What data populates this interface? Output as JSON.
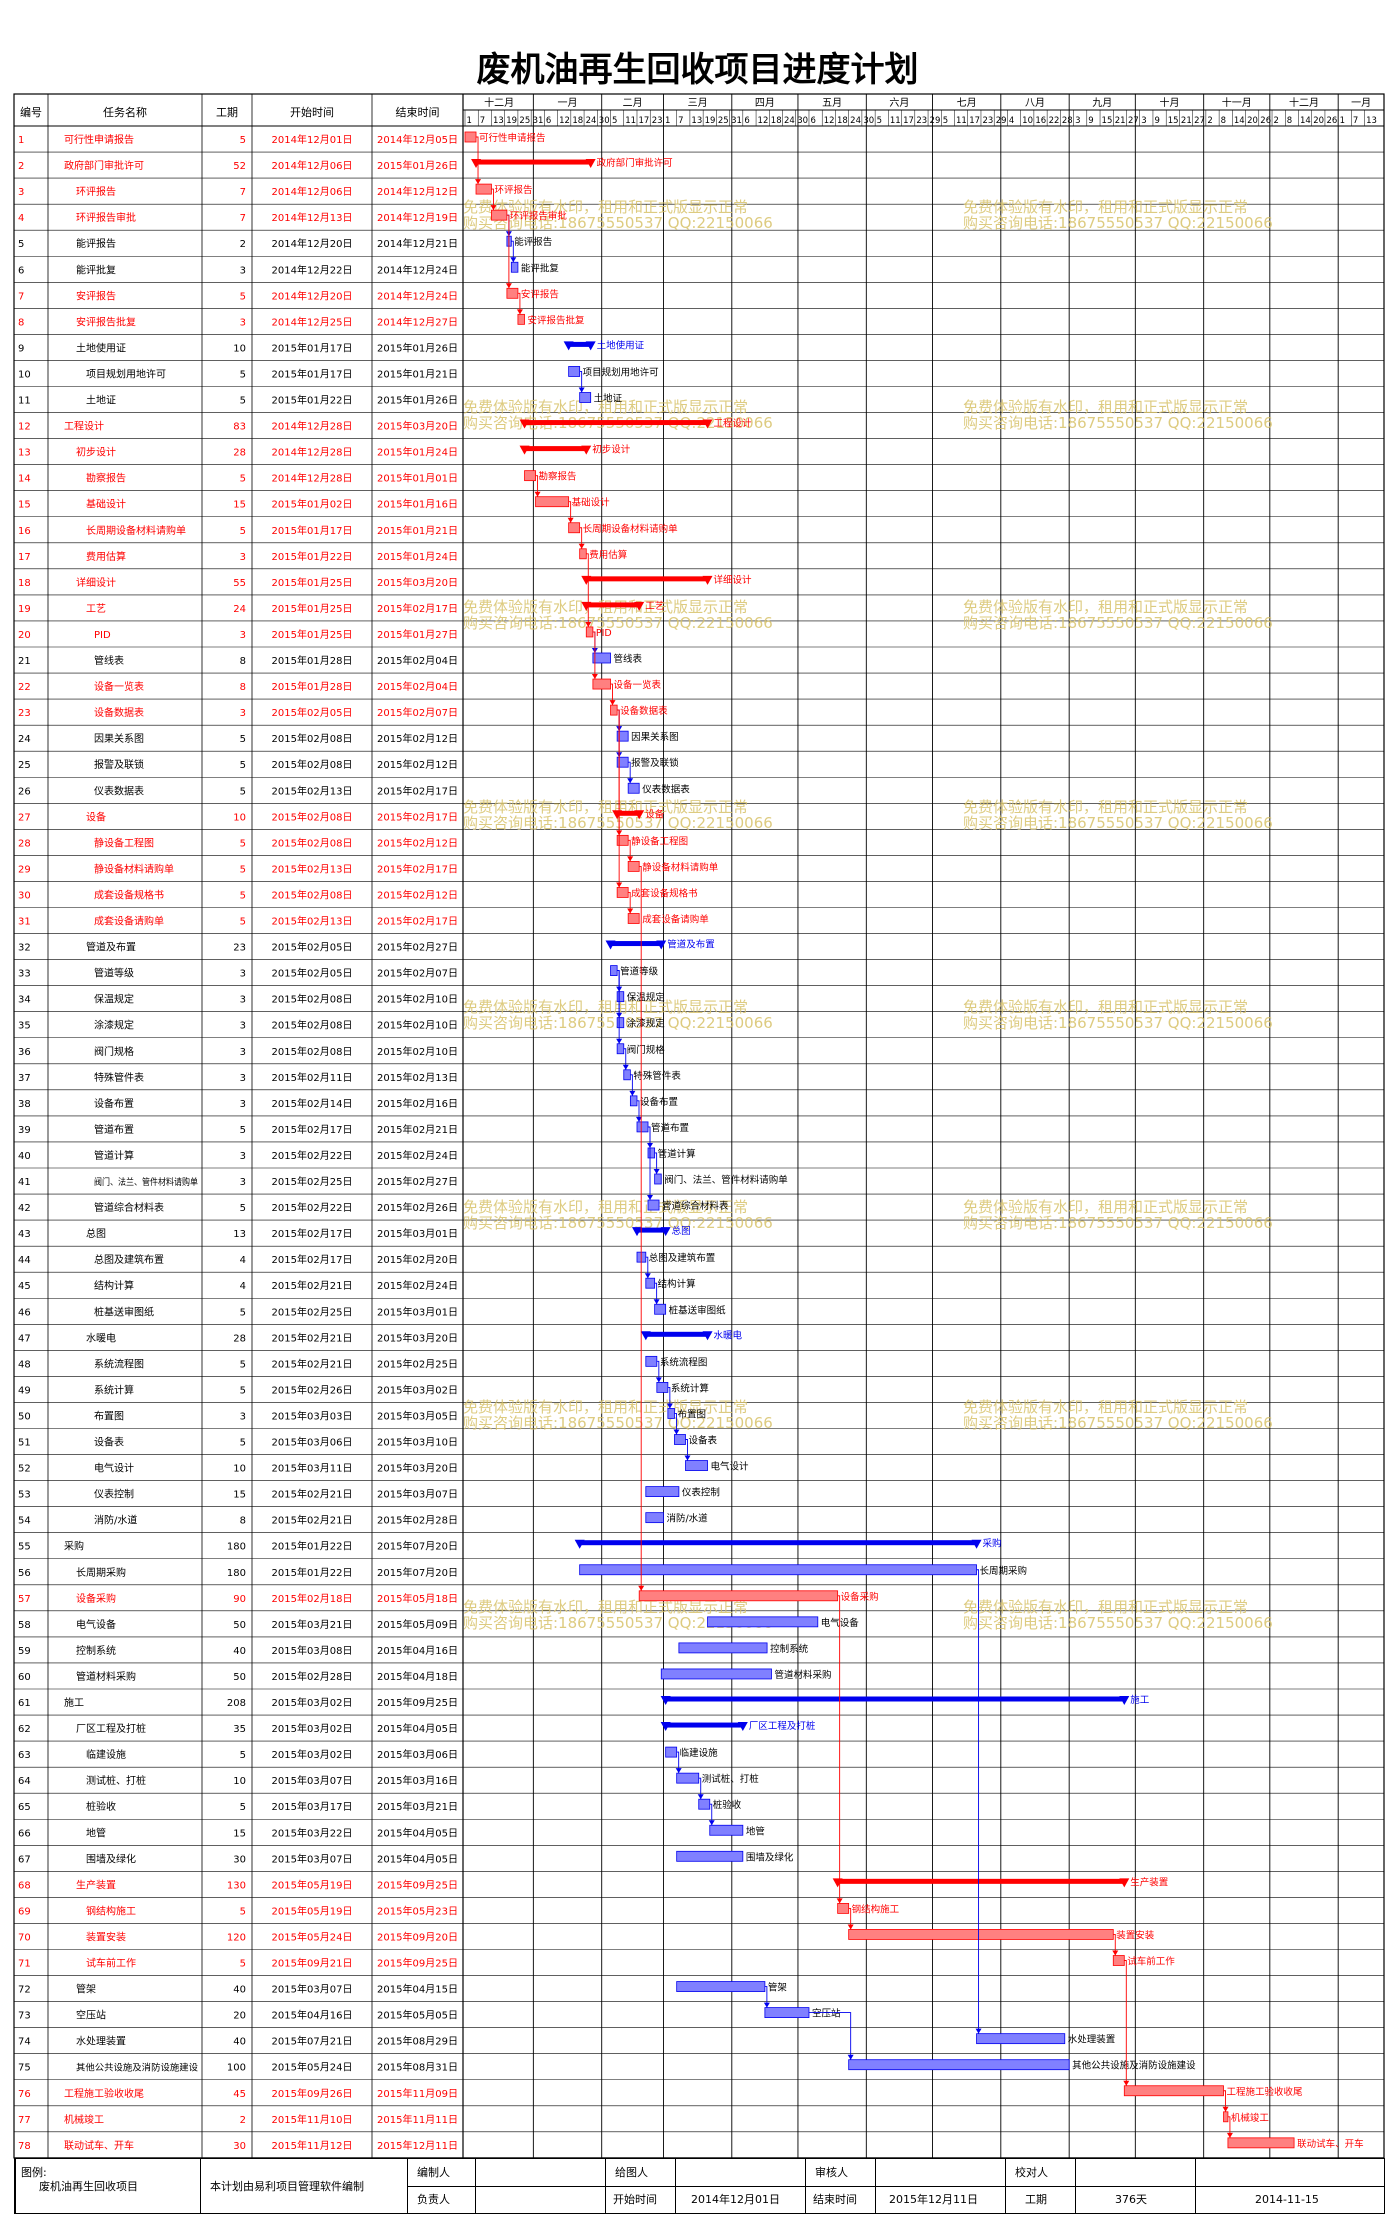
{
  "title": "废机油再生回收项目进度计划",
  "columns": [
    "编号",
    "任务名称",
    "工期",
    "开始时间",
    "结束时间"
  ],
  "month_labels": [
    "十二月",
    "一月",
    "二月",
    "三月",
    "四月",
    "五月",
    "六月",
    "七月",
    "八月",
    "九月",
    "十月",
    "十一月",
    "十二月",
    "一月"
  ],
  "day_labels": [
    "1",
    "7",
    "13",
    "19",
    "25",
    "31",
    "6",
    "12",
    "18",
    "24",
    "30",
    "5",
    "11",
    "17",
    "23",
    "1",
    "7",
    "13",
    "19",
    "25",
    "31",
    "6",
    "12",
    "18",
    "24",
    "30",
    "6",
    "12",
    "18",
    "24",
    "30",
    "5",
    "11",
    "17",
    "23",
    "29",
    "5",
    "11",
    "17",
    "23",
    "29",
    "4",
    "10",
    "16",
    "22",
    "28",
    "3",
    "9",
    "15",
    "21",
    "27",
    "3",
    "9",
    "15",
    "21",
    "27",
    "2",
    "8",
    "14",
    "20",
    "26",
    "2",
    "8",
    "14",
    "20",
    "26",
    "1",
    "7",
    "13"
  ],
  "watermark": [
    "免费体验版有水印，租用和正式版显示正常",
    "购买咨询电话:18675550537 QQ:22150066"
  ],
  "colors": {
    "red": "#ff0000",
    "blue": "#0000ee",
    "red_bar": "#ff8080",
    "blue_bar": "#8080ff",
    "watermark": "#d8c26a"
  },
  "chart_data": {
    "type": "gantt",
    "title": "废机油再生回收项目进度计划",
    "x_range": [
      "2014-12-01",
      "2016-01-18"
    ],
    "tasks": [
      {
        "id": "1",
        "name": "可行性申请报告",
        "days": "5",
        "start": "2014年12月01日",
        "end": "2014年12月05日",
        "critical": true,
        "summary": false,
        "level": 1
      },
      {
        "id": "2",
        "name": "政府部门审批许可",
        "days": "52",
        "start": "2014年12月06日",
        "end": "2015年01月26日",
        "critical": true,
        "summary": true,
        "level": 1
      },
      {
        "id": "3",
        "name": "环评报告",
        "days": "7",
        "start": "2014年12月06日",
        "end": "2014年12月12日",
        "critical": true,
        "summary": false,
        "level": 2
      },
      {
        "id": "4",
        "name": "环评报告审批",
        "days": "7",
        "start": "2014年12月13日",
        "end": "2014年12月19日",
        "critical": true,
        "summary": false,
        "level": 2
      },
      {
        "id": "5",
        "name": "能评报告",
        "days": "2",
        "start": "2014年12月20日",
        "end": "2014年12月21日",
        "critical": false,
        "summary": false,
        "level": 2
      },
      {
        "id": "6",
        "name": "能评批复",
        "days": "3",
        "start": "2014年12月22日",
        "end": "2014年12月24日",
        "critical": false,
        "summary": false,
        "level": 2
      },
      {
        "id": "7",
        "name": "安评报告",
        "days": "5",
        "start": "2014年12月20日",
        "end": "2014年12月24日",
        "critical": true,
        "summary": false,
        "level": 2
      },
      {
        "id": "8",
        "name": "安评报告批复",
        "days": "3",
        "start": "2014年12月25日",
        "end": "2014年12月27日",
        "critical": true,
        "summary": false,
        "level": 2
      },
      {
        "id": "9",
        "name": "土地使用证",
        "days": "10",
        "start": "2015年01月17日",
        "end": "2015年01月26日",
        "critical": false,
        "summary": true,
        "level": 2
      },
      {
        "id": "10",
        "name": "项目规划用地许可",
        "days": "5",
        "start": "2015年01月17日",
        "end": "2015年01月21日",
        "critical": false,
        "summary": false,
        "level": 3
      },
      {
        "id": "11",
        "name": "土地证",
        "days": "5",
        "start": "2015年01月22日",
        "end": "2015年01月26日",
        "critical": false,
        "summary": false,
        "level": 3
      },
      {
        "id": "12",
        "name": "工程设计",
        "days": "83",
        "start": "2014年12月28日",
        "end": "2015年03月20日",
        "critical": true,
        "summary": true,
        "level": 1
      },
      {
        "id": "13",
        "name": "初步设计",
        "days": "28",
        "start": "2014年12月28日",
        "end": "2015年01月24日",
        "critical": true,
        "summary": true,
        "level": 2
      },
      {
        "id": "14",
        "name": "勘察报告",
        "days": "5",
        "start": "2014年12月28日",
        "end": "2015年01月01日",
        "critical": true,
        "summary": false,
        "level": 3
      },
      {
        "id": "15",
        "name": "基础设计",
        "days": "15",
        "start": "2015年01月02日",
        "end": "2015年01月16日",
        "critical": true,
        "summary": false,
        "level": 3
      },
      {
        "id": "16",
        "name": "长周期设备材料请购单",
        "days": "5",
        "start": "2015年01月17日",
        "end": "2015年01月21日",
        "critical": true,
        "summary": false,
        "level": 3
      },
      {
        "id": "17",
        "name": "费用估算",
        "days": "3",
        "start": "2015年01月22日",
        "end": "2015年01月24日",
        "critical": true,
        "summary": false,
        "level": 3
      },
      {
        "id": "18",
        "name": "详细设计",
        "days": "55",
        "start": "2015年01月25日",
        "end": "2015年03月20日",
        "critical": true,
        "summary": true,
        "level": 2
      },
      {
        "id": "19",
        "name": "工艺",
        "days": "24",
        "start": "2015年01月25日",
        "end": "2015年02月17日",
        "critical": true,
        "summary": true,
        "level": 3
      },
      {
        "id": "20",
        "name": "PID",
        "days": "3",
        "start": "2015年01月25日",
        "end": "2015年01月27日",
        "critical": true,
        "summary": false,
        "level": 4
      },
      {
        "id": "21",
        "name": "管线表",
        "days": "8",
        "start": "2015年01月28日",
        "end": "2015年02月04日",
        "critical": false,
        "summary": false,
        "level": 4
      },
      {
        "id": "22",
        "name": "设备一览表",
        "days": "8",
        "start": "2015年01月28日",
        "end": "2015年02月04日",
        "critical": true,
        "summary": false,
        "level": 4
      },
      {
        "id": "23",
        "name": "设备数据表",
        "days": "3",
        "start": "2015年02月05日",
        "end": "2015年02月07日",
        "critical": true,
        "summary": false,
        "level": 4
      },
      {
        "id": "24",
        "name": "因果关系图",
        "days": "5",
        "start": "2015年02月08日",
        "end": "2015年02月12日",
        "critical": false,
        "summary": false,
        "level": 4
      },
      {
        "id": "25",
        "name": "报警及联锁",
        "days": "5",
        "start": "2015年02月08日",
        "end": "2015年02月12日",
        "critical": false,
        "summary": false,
        "level": 4
      },
      {
        "id": "26",
        "name": "仪表数据表",
        "days": "5",
        "start": "2015年02月13日",
        "end": "2015年02月17日",
        "critical": false,
        "summary": false,
        "level": 4
      },
      {
        "id": "27",
        "name": "设备",
        "days": "10",
        "start": "2015年02月08日",
        "end": "2015年02月17日",
        "critical": true,
        "summary": true,
        "level": 3
      },
      {
        "id": "28",
        "name": "静设备工程图",
        "days": "5",
        "start": "2015年02月08日",
        "end": "2015年02月12日",
        "critical": true,
        "summary": false,
        "level": 4
      },
      {
        "id": "29",
        "name": "静设备材料请购单",
        "days": "5",
        "start": "2015年02月13日",
        "end": "2015年02月17日",
        "critical": true,
        "summary": false,
        "level": 4
      },
      {
        "id": "30",
        "name": "成套设备规格书",
        "days": "5",
        "start": "2015年02月08日",
        "end": "2015年02月12日",
        "critical": true,
        "summary": false,
        "level": 4
      },
      {
        "id": "31",
        "name": "成套设备请购单",
        "days": "5",
        "start": "2015年02月13日",
        "end": "2015年02月17日",
        "critical": true,
        "summary": false,
        "level": 4
      },
      {
        "id": "32",
        "name": "管道及布置",
        "days": "23",
        "start": "2015年02月05日",
        "end": "2015年02月27日",
        "critical": false,
        "summary": true,
        "level": 3
      },
      {
        "id": "33",
        "name": "管道等级",
        "days": "3",
        "start": "2015年02月05日",
        "end": "2015年02月07日",
        "critical": false,
        "summary": false,
        "level": 4
      },
      {
        "id": "34",
        "name": "保温规定",
        "days": "3",
        "start": "2015年02月08日",
        "end": "2015年02月10日",
        "critical": false,
        "summary": false,
        "level": 4
      },
      {
        "id": "35",
        "name": "涂漆规定",
        "days": "3",
        "start": "2015年02月08日",
        "end": "2015年02月10日",
        "critical": false,
        "summary": false,
        "level": 4
      },
      {
        "id": "36",
        "name": "阀门规格",
        "days": "3",
        "start": "2015年02月08日",
        "end": "2015年02月10日",
        "critical": false,
        "summary": false,
        "level": 4
      },
      {
        "id": "37",
        "name": "特殊管件表",
        "days": "3",
        "start": "2015年02月11日",
        "end": "2015年02月13日",
        "critical": false,
        "summary": false,
        "level": 4
      },
      {
        "id": "38",
        "name": "设备布置",
        "days": "3",
        "start": "2015年02月14日",
        "end": "2015年02月16日",
        "critical": false,
        "summary": false,
        "level": 4
      },
      {
        "id": "39",
        "name": "管道布置",
        "days": "5",
        "start": "2015年02月17日",
        "end": "2015年02月21日",
        "critical": false,
        "summary": false,
        "level": 4
      },
      {
        "id": "40",
        "name": "管道计算",
        "days": "3",
        "start": "2015年02月22日",
        "end": "2015年02月24日",
        "critical": false,
        "summary": false,
        "level": 4
      },
      {
        "id": "41",
        "name": "阀门、法兰、管件材料请购单",
        "days": "3",
        "start": "2015年02月25日",
        "end": "2015年02月27日",
        "critical": false,
        "summary": false,
        "level": 4
      },
      {
        "id": "42",
        "name": "管道综合材料表",
        "days": "5",
        "start": "2015年02月22日",
        "end": "2015年02月26日",
        "critical": false,
        "summary": false,
        "level": 4
      },
      {
        "id": "43",
        "name": "总图",
        "days": "13",
        "start": "2015年02月17日",
        "end": "2015年03月01日",
        "critical": false,
        "summary": true,
        "level": 3
      },
      {
        "id": "44",
        "name": "总图及建筑布置",
        "days": "4",
        "start": "2015年02月17日",
        "end": "2015年02月20日",
        "critical": false,
        "summary": false,
        "level": 4
      },
      {
        "id": "45",
        "name": "结构计算",
        "days": "4",
        "start": "2015年02月21日",
        "end": "2015年02月24日",
        "critical": false,
        "summary": false,
        "level": 4
      },
      {
        "id": "46",
        "name": "桩基送审图纸",
        "days": "5",
        "start": "2015年02月25日",
        "end": "2015年03月01日",
        "critical": false,
        "summary": false,
        "level": 4
      },
      {
        "id": "47",
        "name": "水暖电",
        "days": "28",
        "start": "2015年02月21日",
        "end": "2015年03月20日",
        "critical": false,
        "summary": true,
        "level": 3
      },
      {
        "id": "48",
        "name": "系统流程图",
        "days": "5",
        "start": "2015年02月21日",
        "end": "2015年02月25日",
        "critical": false,
        "summary": false,
        "level": 4
      },
      {
        "id": "49",
        "name": "系统计算",
        "days": "5",
        "start": "2015年02月26日",
        "end": "2015年03月02日",
        "critical": false,
        "summary": false,
        "level": 4
      },
      {
        "id": "50",
        "name": "布置图",
        "days": "3",
        "start": "2015年03月03日",
        "end": "2015年03月05日",
        "critical": false,
        "summary": false,
        "level": 4
      },
      {
        "id": "51",
        "name": "设备表",
        "days": "5",
        "start": "2015年03月06日",
        "end": "2015年03月10日",
        "critical": false,
        "summary": false,
        "level": 4
      },
      {
        "id": "52",
        "name": "电气设计",
        "days": "10",
        "start": "2015年03月11日",
        "end": "2015年03月20日",
        "critical": false,
        "summary": false,
        "level": 4
      },
      {
        "id": "53",
        "name": "仪表控制",
        "days": "15",
        "start": "2015年02月21日",
        "end": "2015年03月07日",
        "critical": false,
        "summary": false,
        "level": 4
      },
      {
        "id": "54",
        "name": "消防/水道",
        "days": "8",
        "start": "2015年02月21日",
        "end": "2015年02月28日",
        "critical": false,
        "summary": false,
        "level": 4
      },
      {
        "id": "55",
        "name": "采购",
        "days": "180",
        "start": "2015年01月22日",
        "end": "2015年07月20日",
        "critical": false,
        "summary": true,
        "level": 1
      },
      {
        "id": "56",
        "name": "长周期采购",
        "days": "180",
        "start": "2015年01月22日",
        "end": "2015年07月20日",
        "critical": false,
        "summary": false,
        "level": 2
      },
      {
        "id": "57",
        "name": "设备采购",
        "days": "90",
        "start": "2015年02月18日",
        "end": "2015年05月18日",
        "critical": true,
        "summary": false,
        "level": 2
      },
      {
        "id": "58",
        "name": "电气设备",
        "days": "50",
        "start": "2015年03月21日",
        "end": "2015年05月09日",
        "critical": false,
        "summary": false,
        "level": 2
      },
      {
        "id": "59",
        "name": "控制系统",
        "days": "40",
        "start": "2015年03月08日",
        "end": "2015年04月16日",
        "critical": false,
        "summary": false,
        "level": 2
      },
      {
        "id": "60",
        "name": "管道材料采购",
        "days": "50",
        "start": "2015年02月28日",
        "end": "2015年04月18日",
        "critical": false,
        "summary": false,
        "level": 2
      },
      {
        "id": "61",
        "name": "施工",
        "days": "208",
        "start": "2015年03月02日",
        "end": "2015年09月25日",
        "critical": false,
        "summary": true,
        "level": 1
      },
      {
        "id": "62",
        "name": "厂区工程及打桩",
        "days": "35",
        "start": "2015年03月02日",
        "end": "2015年04月05日",
        "critical": false,
        "summary": true,
        "level": 2
      },
      {
        "id": "63",
        "name": "临建设施",
        "days": "5",
        "start": "2015年03月02日",
        "end": "2015年03月06日",
        "critical": false,
        "summary": false,
        "level": 3
      },
      {
        "id": "64",
        "name": "测试桩、打桩",
        "days": "10",
        "start": "2015年03月07日",
        "end": "2015年03月16日",
        "critical": false,
        "summary": false,
        "level": 3
      },
      {
        "id": "65",
        "name": "桩验收",
        "days": "5",
        "start": "2015年03月17日",
        "end": "2015年03月21日",
        "critical": false,
        "summary": false,
        "level": 3
      },
      {
        "id": "66",
        "name": "地管",
        "days": "15",
        "start": "2015年03月22日",
        "end": "2015年04月05日",
        "critical": false,
        "summary": false,
        "level": 3
      },
      {
        "id": "67",
        "name": "围墙及绿化",
        "days": "30",
        "start": "2015年03月07日",
        "end": "2015年04月05日",
        "critical": false,
        "summary": false,
        "level": 3
      },
      {
        "id": "68",
        "name": "生产装置",
        "days": "130",
        "start": "2015年05月19日",
        "end": "2015年09月25日",
        "critical": true,
        "summary": true,
        "level": 2
      },
      {
        "id": "69",
        "name": "钢结构施工",
        "days": "5",
        "start": "2015年05月19日",
        "end": "2015年05月23日",
        "critical": true,
        "summary": false,
        "level": 3
      },
      {
        "id": "70",
        "name": "装置安装",
        "days": "120",
        "start": "2015年05月24日",
        "end": "2015年09月20日",
        "critical": true,
        "summary": false,
        "level": 3
      },
      {
        "id": "71",
        "name": "试车前工作",
        "days": "5",
        "start": "2015年09月21日",
        "end": "2015年09月25日",
        "critical": true,
        "summary": false,
        "level": 3
      },
      {
        "id": "72",
        "name": "管架",
        "days": "40",
        "start": "2015年03月07日",
        "end": "2015年04月15日",
        "critical": false,
        "summary": false,
        "level": 2
      },
      {
        "id": "73",
        "name": "空压站",
        "days": "20",
        "start": "2015年04月16日",
        "end": "2015年05月05日",
        "critical": false,
        "summary": false,
        "level": 2
      },
      {
        "id": "74",
        "name": "水处理装置",
        "days": "40",
        "start": "2015年07月21日",
        "end": "2015年08月29日",
        "critical": false,
        "summary": false,
        "level": 2
      },
      {
        "id": "75",
        "name": "其他公共设施及消防设施建设",
        "days": "100",
        "start": "2015年05月24日",
        "end": "2015年08月31日",
        "critical": false,
        "summary": false,
        "level": 2
      },
      {
        "id": "76",
        "name": "工程施工验收收尾",
        "days": "45",
        "start": "2015年09月26日",
        "end": "2015年11月09日",
        "critical": true,
        "summary": false,
        "level": 1
      },
      {
        "id": "77",
        "name": "机械竣工",
        "days": "2",
        "start": "2015年11月10日",
        "end": "2015年11月11日",
        "critical": true,
        "summary": false,
        "level": 1
      },
      {
        "id": "78",
        "name": "联动试车、开车",
        "days": "30",
        "start": "2015年11月12日",
        "end": "2015年12月11日",
        "critical": true,
        "summary": false,
        "level": 1
      }
    ]
  },
  "footer": {
    "legend": "图例:",
    "project": "废机油再生回收项目",
    "software": "本计划由易利项目管理软件编制",
    "editor_label": "编制人",
    "owner_label": "负责人",
    "approver_label": "给图人",
    "start_label": "开始时间",
    "start_value": "2014年12月01日",
    "reviewer_label": "审核人",
    "end_label": "结束时间",
    "end_value": "2015年12月11日",
    "checker_label": "校对人",
    "duration_label": "工期",
    "duration_value": "376天",
    "date_value": "2014-11-15"
  }
}
